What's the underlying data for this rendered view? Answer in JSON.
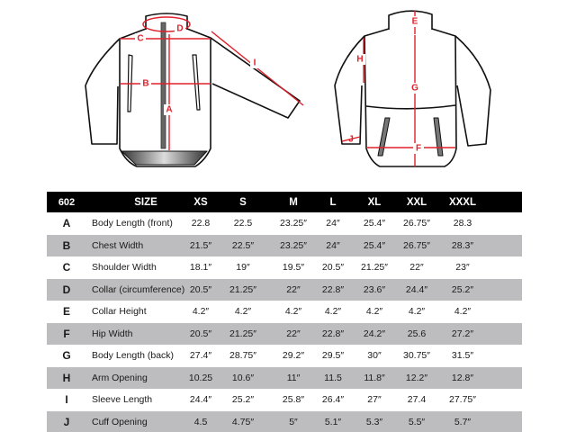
{
  "diagram": {
    "front_labels": {
      "A": "A",
      "B": "B",
      "C": "C",
      "D": "D",
      "I": "I"
    },
    "back_labels": {
      "E": "E",
      "F": "F",
      "G": "G",
      "H": "H",
      "J": "J"
    },
    "measure_color": "#e0202a"
  },
  "table": {
    "header": {
      "code": "602",
      "size": "SIZE",
      "sizes": [
        "XS",
        "S",
        "M",
        "L",
        "XL",
        "XXL",
        "XXXL"
      ]
    },
    "rows": [
      {
        "code": "A",
        "name": "Body Length (front)",
        "values": [
          "22.8",
          "22.5",
          "23.25″",
          "24″",
          "25.4″",
          "26.75″",
          "28.3"
        ]
      },
      {
        "code": "B",
        "name": "Chest Width",
        "values": [
          "21.5″",
          "22.5″",
          "23.25″",
          "24″",
          "25.4″",
          "26.75″",
          "28.3″"
        ]
      },
      {
        "code": "C",
        "name": "Shoulder Width",
        "values": [
          "18.1″",
          "19″",
          "19.5″",
          "20.5″",
          "21.25″",
          "22″",
          "23″"
        ]
      },
      {
        "code": "D",
        "name": "Collar (circumference)",
        "values": [
          "20.5″",
          "21.25″",
          "22″",
          "22.8″",
          "23.6″",
          "24.4″",
          "25.2″"
        ]
      },
      {
        "code": "E",
        "name": "Collar Height",
        "values": [
          "4.2″",
          "4.2″",
          "4.2″",
          "4.2″",
          "4.2″",
          "4.2″",
          "4.2″"
        ]
      },
      {
        "code": "F",
        "name": "Hip Width",
        "values": [
          "20.5″",
          "21.25″",
          "22″",
          "22.8″",
          "24.2″",
          "25.6",
          "27.2″"
        ]
      },
      {
        "code": "G",
        "name": "Body Length (back)",
        "values": [
          "27.4″",
          "28.75″",
          "29.2″",
          "29.5″",
          "30″",
          "30.75″",
          "31.5″"
        ]
      },
      {
        "code": "H",
        "name": "Arm Opening",
        "values": [
          "10.25",
          "10.6″",
          "11″",
          "11.5",
          "11.8″",
          "12.2″",
          "12.8″"
        ]
      },
      {
        "code": "I",
        "name": "Sleeve Length",
        "values": [
          "24.4″",
          "25.2″",
          "25.8″",
          "26.4″",
          "27″",
          "27.4",
          "27.75″"
        ]
      },
      {
        "code": "J",
        "name": "Cuff Opening",
        "values": [
          "4.5",
          "4.75″",
          "5″",
          "5.1″",
          "5.3″",
          "5.5″",
          "5.7″"
        ]
      }
    ]
  }
}
